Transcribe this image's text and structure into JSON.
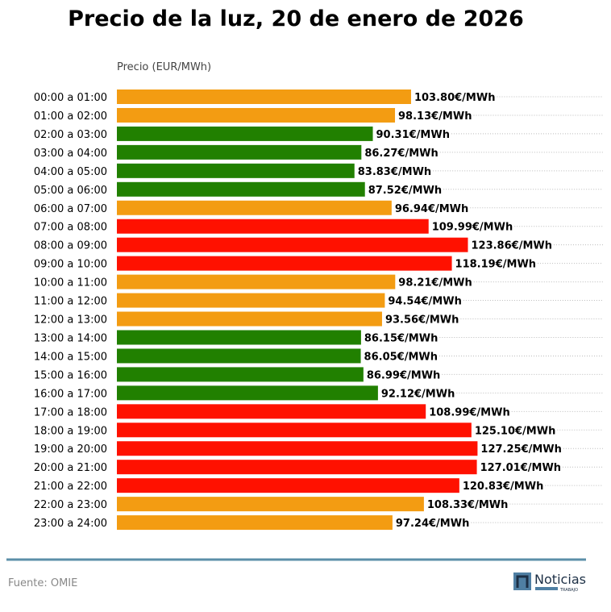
{
  "chart_data": {
    "type": "bar",
    "orientation": "horizontal",
    "title": "Precio de la luz, 20 de enero de 2026",
    "xlabel": "Precio (EUR/MWh)",
    "value_suffix": "€/MWh",
    "grid": "dotted horizontal lines",
    "categories": [
      "00:00 a 01:00",
      "01:00 a 02:00",
      "02:00 a 03:00",
      "03:00 a 04:00",
      "04:00 a 05:00",
      "05:00 a 06:00",
      "06:00 a 07:00",
      "07:00 a 08:00",
      "08:00 a 09:00",
      "09:00 a 10:00",
      "10:00 a 11:00",
      "11:00 a 12:00",
      "12:00 a 13:00",
      "13:00 a 14:00",
      "14:00 a 15:00",
      "15:00 a 16:00",
      "16:00 a 17:00",
      "17:00 a 18:00",
      "18:00 a 19:00",
      "19:00 a 20:00",
      "20:00 a 21:00",
      "21:00 a 22:00",
      "22:00 a 23:00",
      "23:00 a 24:00"
    ],
    "values": [
      103.8,
      98.13,
      90.31,
      86.27,
      83.83,
      87.52,
      96.94,
      109.99,
      123.86,
      118.19,
      98.21,
      94.54,
      93.56,
      86.15,
      86.05,
      86.99,
      92.12,
      108.99,
      125.1,
      127.25,
      127.01,
      120.83,
      108.33,
      97.24
    ],
    "value_labels": [
      "103.80€/MWh",
      "98.13€/MWh",
      "90.31€/MWh",
      "86.27€/MWh",
      "83.83€/MWh",
      "87.52€/MWh",
      "96.94€/MWh",
      "109.99€/MWh",
      "123.86€/MWh",
      "118.19€/MWh",
      "98.21€/MWh",
      "94.54€/MWh",
      "93.56€/MWh",
      "86.15€/MWh",
      "86.05€/MWh",
      "86.99€/MWh",
      "92.12€/MWh",
      "108.99€/MWh",
      "125.10€/MWh",
      "127.25€/MWh",
      "127.01€/MWh",
      "120.83€/MWh",
      "108.33€/MWh",
      "97.24€/MWh"
    ],
    "bar_levels": [
      "medium",
      "medium",
      "low",
      "low",
      "low",
      "low",
      "medium",
      "high",
      "high",
      "high",
      "medium",
      "medium",
      "medium",
      "low",
      "low",
      "low",
      "low",
      "high",
      "high",
      "high",
      "high",
      "high",
      "medium",
      "medium"
    ],
    "colors": {
      "low": "#218000",
      "medium": "#f39c12",
      "high": "#ff1100"
    }
  },
  "footer": {
    "source": "Fuente: OMIE",
    "rule_color": "#5b8fa8",
    "logo_text": "Noticias",
    "logo_subtext": "TRABAJO"
  }
}
